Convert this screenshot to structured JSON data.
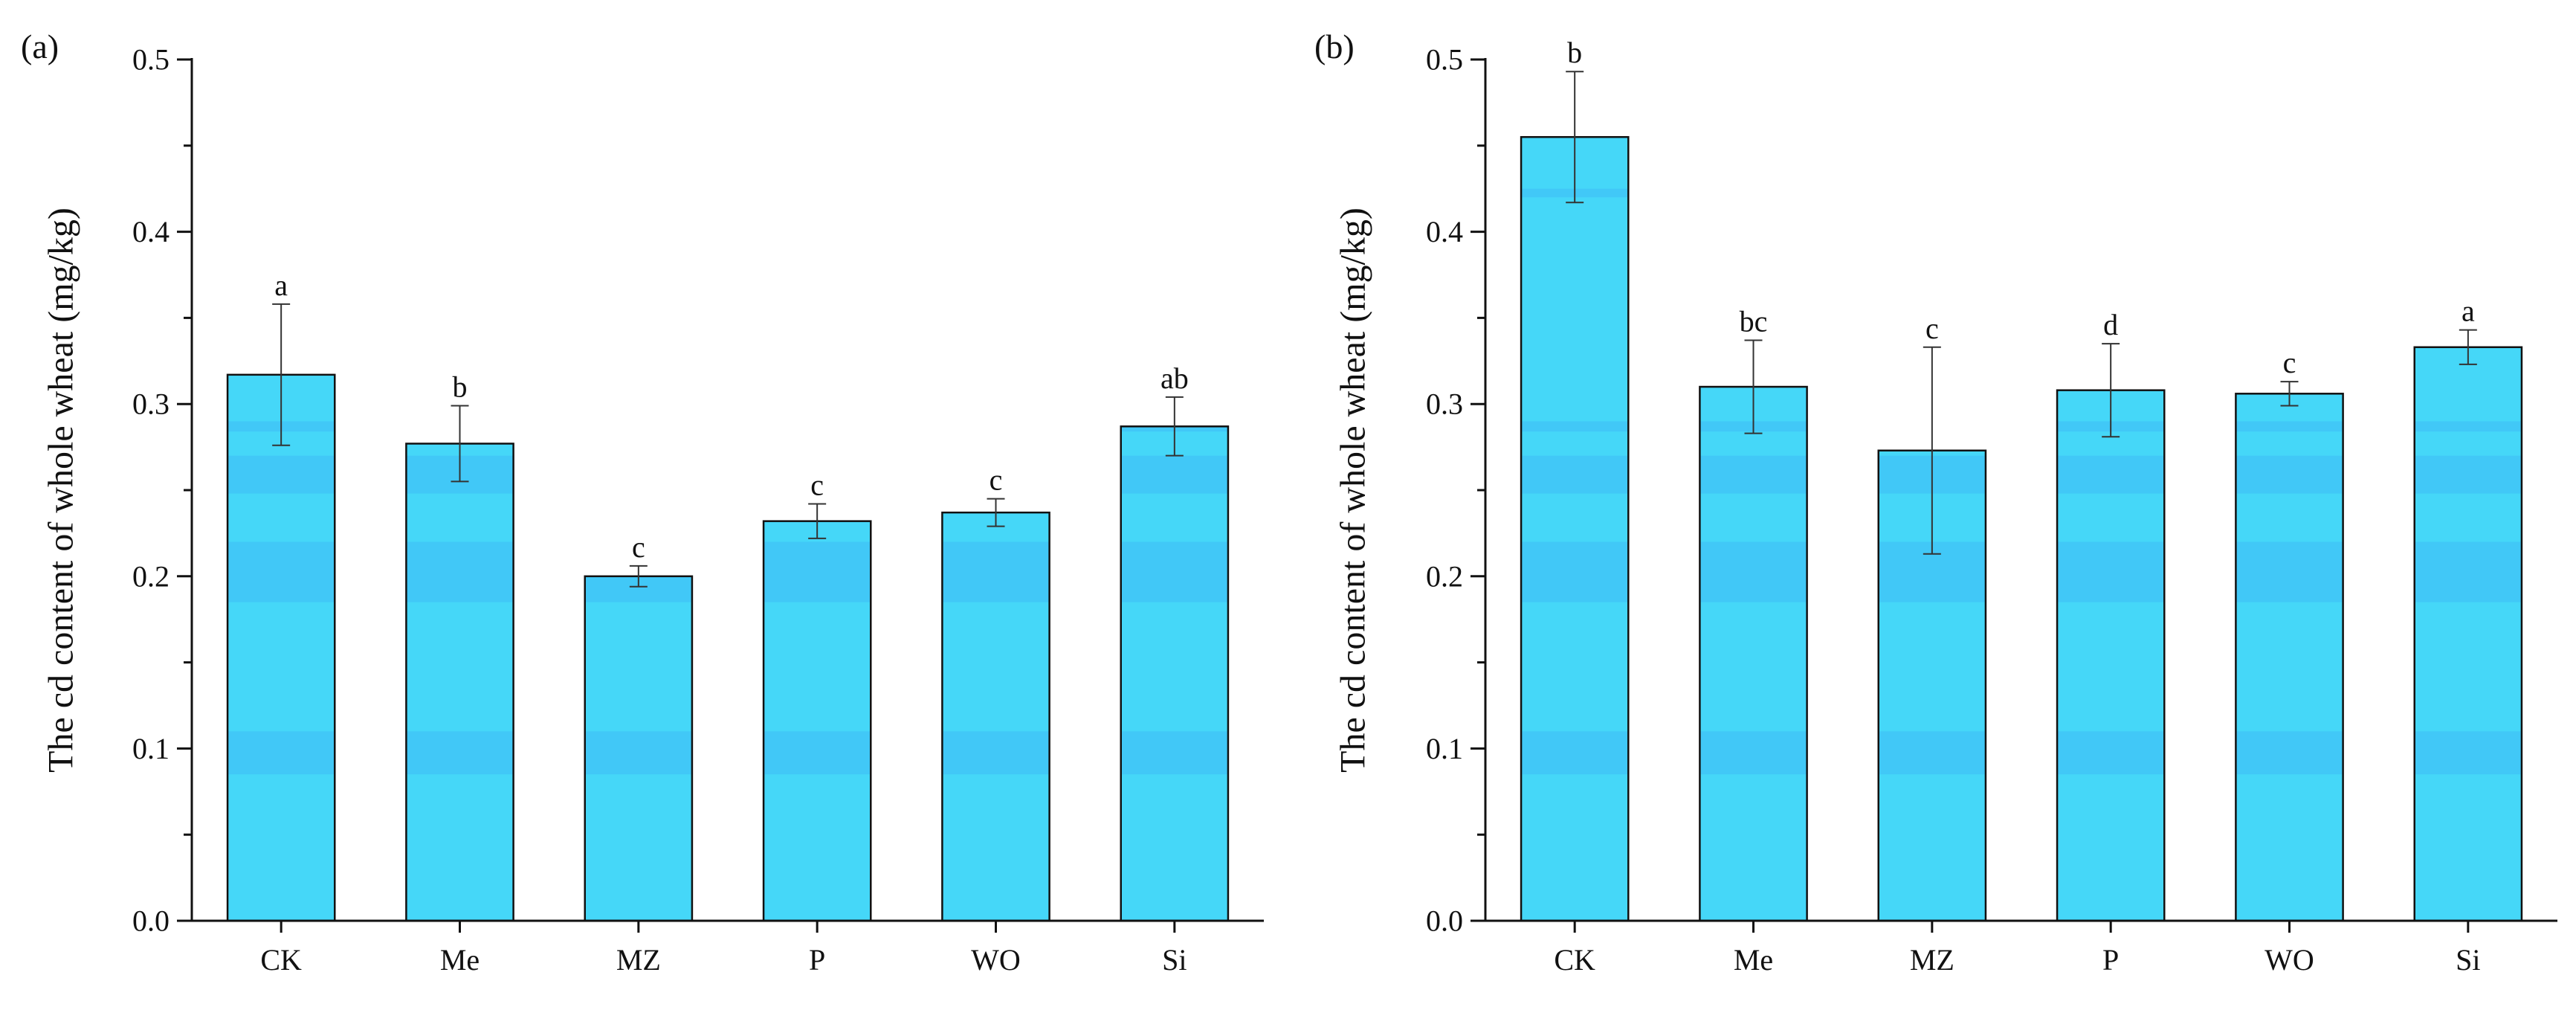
{
  "chart_data": [
    {
      "type": "bar",
      "panel_label": "(a)",
      "categories": [
        "CK",
        "Me",
        "MZ",
        "P",
        "WO",
        "Si"
      ],
      "values": [
        0.317,
        0.277,
        0.2,
        0.232,
        0.237,
        0.287
      ],
      "errors": [
        0.041,
        0.022,
        0.006,
        0.01,
        0.008,
        0.017
      ],
      "significance": [
        "a",
        "b",
        "c",
        "c",
        "c",
        "ab"
      ],
      "ylabel": "The cd content of whole wheat (mg/kg)",
      "xlabel": "",
      "ylim": [
        0,
        0.5
      ],
      "yticks": [
        "0.0",
        "0.1",
        "0.2",
        "0.3",
        "0.4",
        "0.5"
      ],
      "bar_color": "#45d7f8",
      "band_color": "#40c6f6"
    },
    {
      "type": "bar",
      "panel_label": "(b)",
      "categories": [
        "CK",
        "Me",
        "MZ",
        "P",
        "WO",
        "Si"
      ],
      "values": [
        0.455,
        0.31,
        0.273,
        0.308,
        0.306,
        0.333
      ],
      "errors": [
        0.038,
        0.027,
        0.06,
        0.027,
        0.007,
        0.01
      ],
      "significance": [
        "b",
        "bc",
        "c",
        "d",
        "c",
        "a"
      ],
      "ylabel": "The cd content of whole wheat (mg/kg)",
      "xlabel": "",
      "ylim": [
        0,
        0.5
      ],
      "yticks": [
        "0.0",
        "0.1",
        "0.2",
        "0.3",
        "0.4",
        "0.5"
      ],
      "bar_color": "#45d7f8",
      "band_color": "#40c6f6"
    }
  ]
}
